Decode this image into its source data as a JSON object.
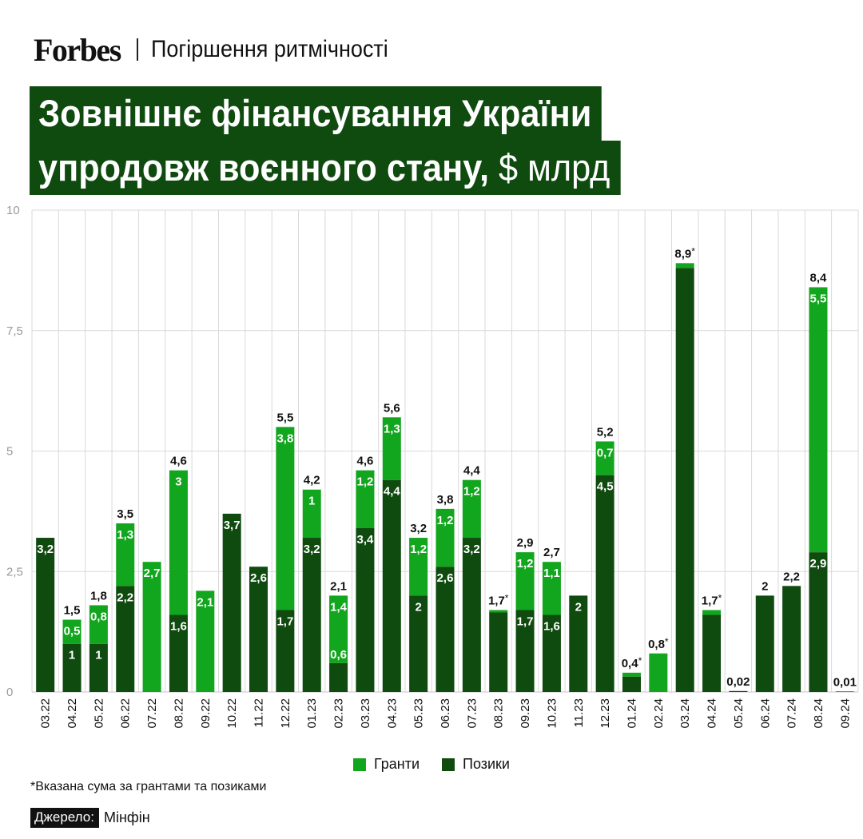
{
  "header": {
    "brand": "Forbes",
    "section": "Погіршення ритмічності",
    "title_line1": "Зовнішнє фінансування України",
    "title_line2": "упродовж воєнного стану,",
    "title_unit": "$ млрд"
  },
  "legend": {
    "grants": "Гранти",
    "loans": "Позики"
  },
  "footnote": "*Вказана сума за грантами та позиками",
  "source": {
    "label": "Джерело:",
    "value": "Мінфін"
  },
  "colors": {
    "grants": "#12a51e",
    "loans": "#0f4a0f",
    "grid": "#d9d9d9",
    "title_bg": "#0f4a0f"
  },
  "chart_data": {
    "type": "bar",
    "stacked": true,
    "ylim": [
      0,
      10
    ],
    "yticks": [
      "0",
      "2,5",
      "5",
      "7,5",
      "10"
    ],
    "ytick_values": [
      0,
      2.5,
      5,
      7.5,
      10
    ],
    "categories": [
      "03.22",
      "04.22",
      "05.22",
      "06.22",
      "07.22",
      "08.22",
      "09.22",
      "10.22",
      "11.22",
      "12.22",
      "01.23",
      "02.23",
      "03.23",
      "04.23",
      "05.23",
      "06.23",
      "07.23",
      "08.23",
      "09.23",
      "10.23",
      "11.23",
      "12.23",
      "01.24",
      "02.24",
      "03.24",
      "04.24",
      "05.24",
      "06.24",
      "07.24",
      "08.24",
      "09.24"
    ],
    "series": [
      {
        "name": "Позики",
        "key": "loans",
        "values": [
          3.2,
          1,
          1,
          2.2,
          0,
          1.6,
          0,
          3.7,
          2.6,
          1.7,
          3.2,
          0.6,
          3.4,
          4.4,
          2,
          2.6,
          3.2,
          1.65,
          1.7,
          1.6,
          2,
          4.5,
          0.32,
          0,
          8.8,
          1.6,
          0.02,
          2,
          2.2,
          2.9,
          0.01
        ],
        "labels": [
          "3,2",
          "1",
          "1",
          "2,2",
          "",
          "1,6",
          "",
          "3,7",
          "2,6",
          "1,7",
          "3,2",
          "0,6",
          "3,4",
          "4,4",
          "2",
          "2,6",
          "3,2",
          "",
          "1,7",
          "1,6",
          "2",
          "4,5",
          "",
          "",
          "",
          "",
          "",
          "",
          "",
          "2,9",
          ""
        ]
      },
      {
        "name": "Гранти",
        "key": "grants",
        "values": [
          0,
          0.5,
          0.8,
          1.3,
          2.7,
          3,
          2.1,
          0,
          0,
          3.8,
          1,
          1.4,
          1.2,
          1.3,
          1.2,
          1.2,
          1.2,
          0.05,
          1.2,
          1.1,
          0,
          0.7,
          0.08,
          0.8,
          0.1,
          0.1,
          0,
          0,
          0,
          5.5,
          0
        ],
        "labels": [
          "",
          "0,5",
          "0,8",
          "1,3",
          "2,7",
          "3",
          "2,1",
          "",
          "",
          "3,8",
          "1",
          "1,4",
          "1,2",
          "1,3",
          "1,2",
          "1,2",
          "1,2",
          "",
          "1,2",
          "1,1",
          "",
          "0,7",
          "",
          "",
          "",
          "",
          "",
          "",
          "",
          "5,5",
          ""
        ]
      }
    ],
    "totals": [
      "",
      "1,5",
      "1,8",
      "3,5",
      "",
      "4,6",
      "",
      "",
      "",
      "5,5",
      "4,2",
      "2,1",
      "4,6",
      "5,6",
      "3,2",
      "3,8",
      "4,4",
      "1,7",
      "2,9",
      "2,7",
      "",
      "5,2",
      "0,4",
      "0,8",
      "8,9",
      "1,7",
      "0,02",
      "2",
      "2,2",
      "8,4",
      "0,01"
    ],
    "totals_starred": [
      false,
      false,
      false,
      false,
      false,
      false,
      false,
      false,
      false,
      false,
      false,
      false,
      false,
      false,
      false,
      false,
      false,
      true,
      false,
      false,
      false,
      false,
      true,
      true,
      true,
      true,
      false,
      false,
      false,
      false,
      false
    ]
  }
}
